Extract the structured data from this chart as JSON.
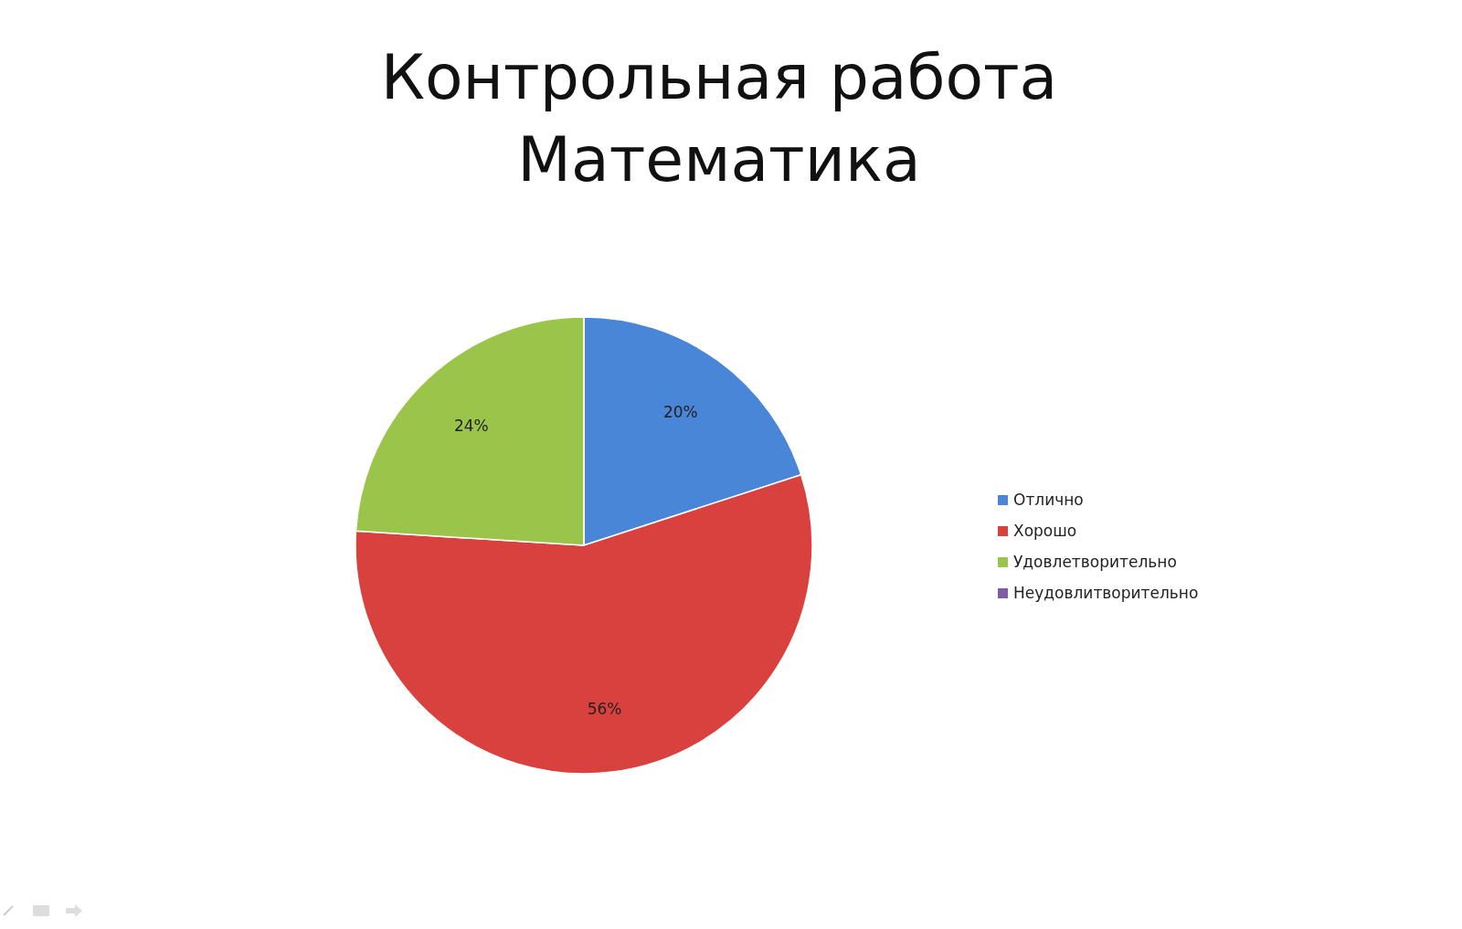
{
  "chart_data": {
    "type": "pie",
    "title": "Контрольная работа Математика",
    "categories": [
      "Отлично",
      "Хорошо",
      "Удовлетворительно",
      "Неудовлитворительно"
    ],
    "values": [
      20,
      56,
      24,
      0
    ],
    "colors": [
      "#4a86d8",
      "#d9413f",
      "#9bc54a",
      "#7e5ca8"
    ],
    "value_labels": [
      "20%",
      "56%",
      "24%",
      null
    ],
    "legend": "right"
  }
}
